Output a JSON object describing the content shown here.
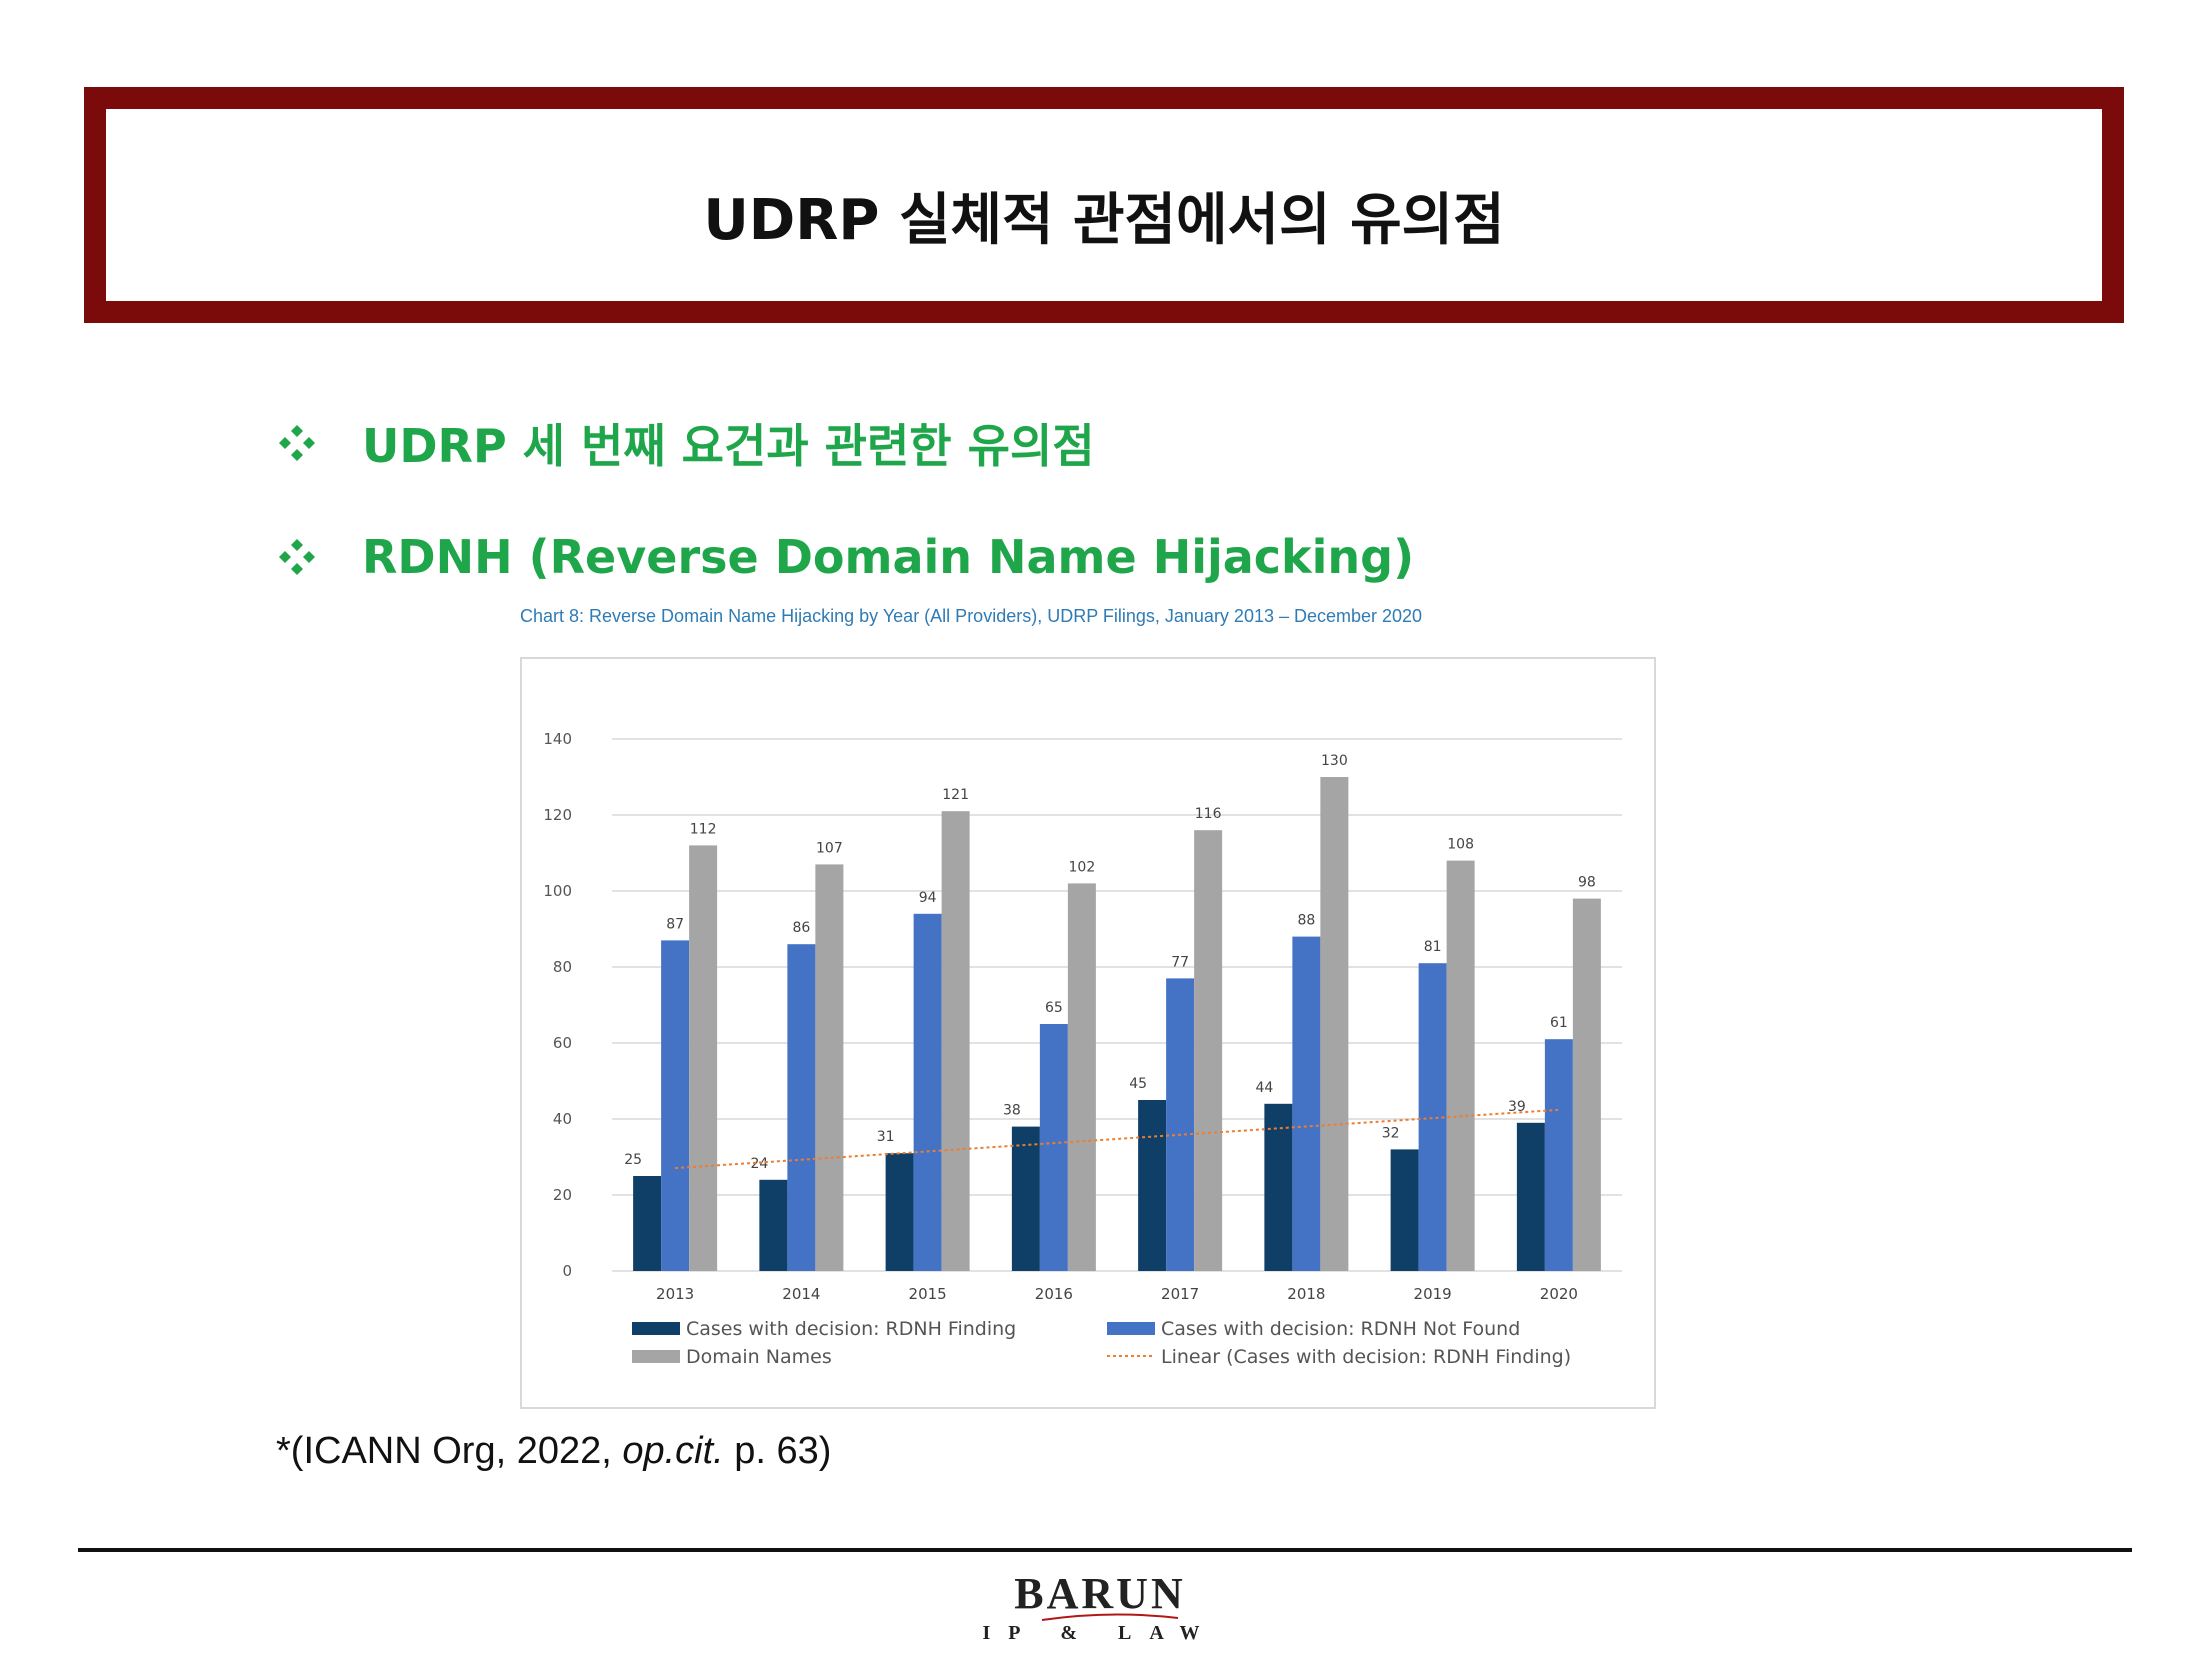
{
  "slide": {
    "title": "UDRP 실체적 관점에서의 유의점",
    "bullets": [
      {
        "icon": "diamond-bullet-icon",
        "text": "UDRP 세 번째 요건과 관련한 유의점"
      },
      {
        "icon": "diamond-bullet-icon",
        "text": "RDNH (Reverse Domain Name Hijacking)"
      }
    ],
    "chart_caption": "Chart 8: Reverse Domain Name Hijacking by Year (All Providers), UDRP Filings, January 2013 – December 2020",
    "source_prefix": "*(ICANN Org, 2022, ",
    "source_italic": "op.cit.",
    "source_suffix": " p. 63)"
  },
  "footer": {
    "logo_main": "BARUN",
    "logo_sub": "IP & LAW"
  },
  "colors": {
    "frame": "#7b0a0a",
    "bullet_green": "#1fa64a",
    "caption_blue": "#2f7bb5",
    "series_finding": "#0f3f66",
    "series_not_found": "#4472c4",
    "series_domain": "#a5a5a5",
    "trend": "#ed7d31",
    "grid": "#d9d9d9"
  },
  "chart_data": {
    "type": "bar",
    "categories": [
      "2013",
      "2014",
      "2015",
      "2016",
      "2017",
      "2018",
      "2019",
      "2020"
    ],
    "series": [
      {
        "name": "Cases with decision: RDNH Finding",
        "values": [
          25,
          24,
          31,
          38,
          45,
          44,
          32,
          39
        ]
      },
      {
        "name": "Cases with decision: RDNH Not Found",
        "values": [
          87,
          86,
          94,
          65,
          77,
          88,
          81,
          61
        ]
      },
      {
        "name": "Domain Names",
        "values": [
          112,
          107,
          121,
          102,
          116,
          130,
          108,
          98
        ]
      }
    ],
    "trendline": {
      "name": "Linear (Cases with decision: RDNH Finding)",
      "of_series": "Cases with decision: RDNH Finding"
    },
    "yticks": [
      0,
      20,
      40,
      60,
      80,
      100,
      120,
      140
    ],
    "ylim": [
      0,
      140
    ],
    "grid": true,
    "legend_position": "bottom",
    "data_labels": true
  }
}
